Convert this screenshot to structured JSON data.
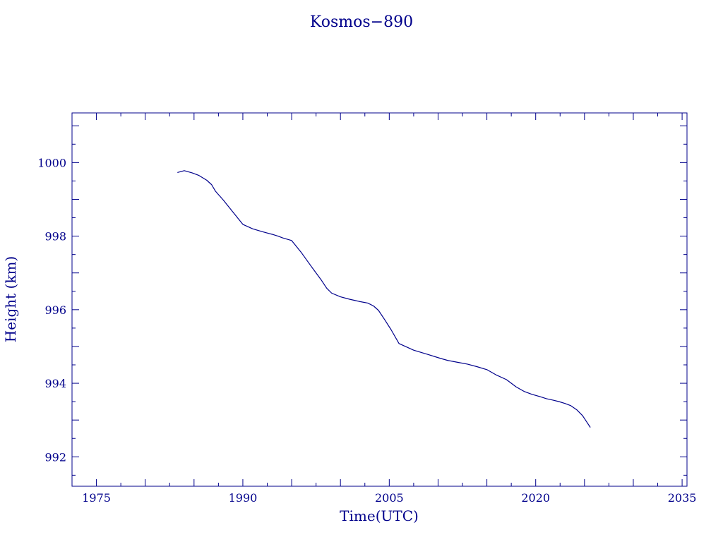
{
  "colors": {
    "ink": "#00008b",
    "background": "#ffffff"
  },
  "chart_data": {
    "type": "line",
    "title": "Kosmos−890",
    "xlabel": "Time(UTC)",
    "ylabel": "Height (km)",
    "xlim": [
      1972.5,
      2035.5
    ],
    "ylim": [
      991.2,
      1001.35
    ],
    "xticks": [
      1975,
      1990,
      2005,
      2020,
      2035
    ],
    "xtick_labels": [
      "1975",
      "1990",
      "2005",
      "2020",
      "2035"
    ],
    "yticks": [
      992,
      994,
      996,
      998,
      1000
    ],
    "ytick_labels": [
      "992",
      "994",
      "996",
      "998",
      "1000"
    ],
    "grid": false,
    "series": [
      {
        "x": [
          1983.3,
          1984.0,
          1984.8,
          1985.5,
          1986.3,
          1986.8,
          1987.2,
          1988.0,
          1989.0,
          1990.0,
          1991.0,
          1992.0,
          1993.0,
          1993.6,
          1994.1,
          1995.0,
          1996.0,
          1997.0,
          1998.0,
          1998.6,
          1999.1,
          2000.0,
          2001.0,
          2002.0,
          2002.8,
          2003.4,
          2003.9,
          2004.6,
          2005.2,
          2006.0,
          2007.5,
          2009.0,
          2010.2,
          2011.0,
          2012.0,
          2013.0,
          2014.0,
          2015.0,
          2016.0,
          2017.0,
          2018.0,
          2018.8,
          2019.6,
          2020.4,
          2021.1,
          2021.8,
          2022.4,
          2023.0,
          2023.6,
          2024.2,
          2024.8,
          2025.2,
          2025.6
        ],
        "y": [
          999.73,
          999.78,
          999.72,
          999.65,
          999.52,
          999.4,
          999.22,
          998.98,
          998.65,
          998.32,
          998.2,
          998.12,
          998.05,
          998.0,
          997.95,
          997.88,
          997.55,
          997.18,
          996.82,
          996.58,
          996.45,
          996.35,
          996.28,
          996.22,
          996.18,
          996.1,
          995.98,
          995.7,
          995.45,
          995.08,
          994.9,
          994.78,
          994.68,
          994.62,
          994.57,
          994.52,
          994.45,
          994.37,
          994.22,
          994.1,
          993.9,
          993.78,
          993.7,
          993.64,
          993.58,
          993.54,
          993.5,
          993.45,
          993.39,
          993.28,
          993.12,
          992.96,
          992.8
        ]
      }
    ]
  }
}
